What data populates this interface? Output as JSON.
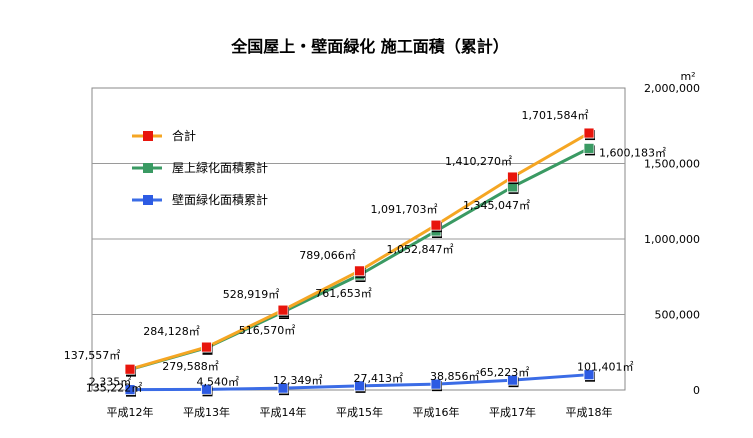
{
  "chart_data": {
    "type": "line",
    "title": "全国屋上・壁面緑化 施工面積（累計）",
    "unit_label": "m²",
    "categories": [
      "平成12年",
      "平成13年",
      "平成14年",
      "平成15年",
      "平成16年",
      "平成17年",
      "平成18年"
    ],
    "ylim": [
      0,
      2000000
    ],
    "y_ticks": [
      0,
      500000,
      1000000,
      1500000,
      2000000
    ],
    "y_tick_labels": [
      "0",
      "500,000",
      "1,000,000",
      "1,500,000",
      "2,000,000"
    ],
    "y_axis_side": "right",
    "grid": true,
    "legend_position": "top-left",
    "series": [
      {
        "name": "合計",
        "color": "#F5A623",
        "marker_color": "#E8150C",
        "values": [
          137557,
          284128,
          528919,
          789066,
          1091703,
          1410270,
          1701584
        ],
        "labels": [
          "137,557㎡",
          "284,128㎡",
          "528,919㎡",
          "789,066㎡",
          "1,091,703㎡",
          "1,410,270㎡",
          "1,701,584㎡"
        ]
      },
      {
        "name": "屋上緑化面積累計",
        "color": "#3A9A63",
        "marker_color": "#3A9A63",
        "values": [
          135222,
          279588,
          516570,
          761653,
          1052847,
          1345047,
          1600183
        ],
        "labels": [
          "135,222㎡",
          "279,588㎡",
          "516,570㎡",
          "761,653㎡",
          "1,052,847㎡",
          "1,345,047㎡",
          "1,600,183㎡"
        ]
      },
      {
        "name": "壁面緑化面積累計",
        "color": "#3B6CE6",
        "marker_color": "#2D5BE3",
        "values": [
          2335,
          4540,
          12349,
          27413,
          38856,
          65223,
          101401
        ],
        "labels": [
          "2,335㎡",
          "4,540㎡",
          "12,349㎡",
          "27,413㎡",
          "38,856㎡",
          "65,223㎡",
          "101,401㎡"
        ]
      }
    ]
  }
}
